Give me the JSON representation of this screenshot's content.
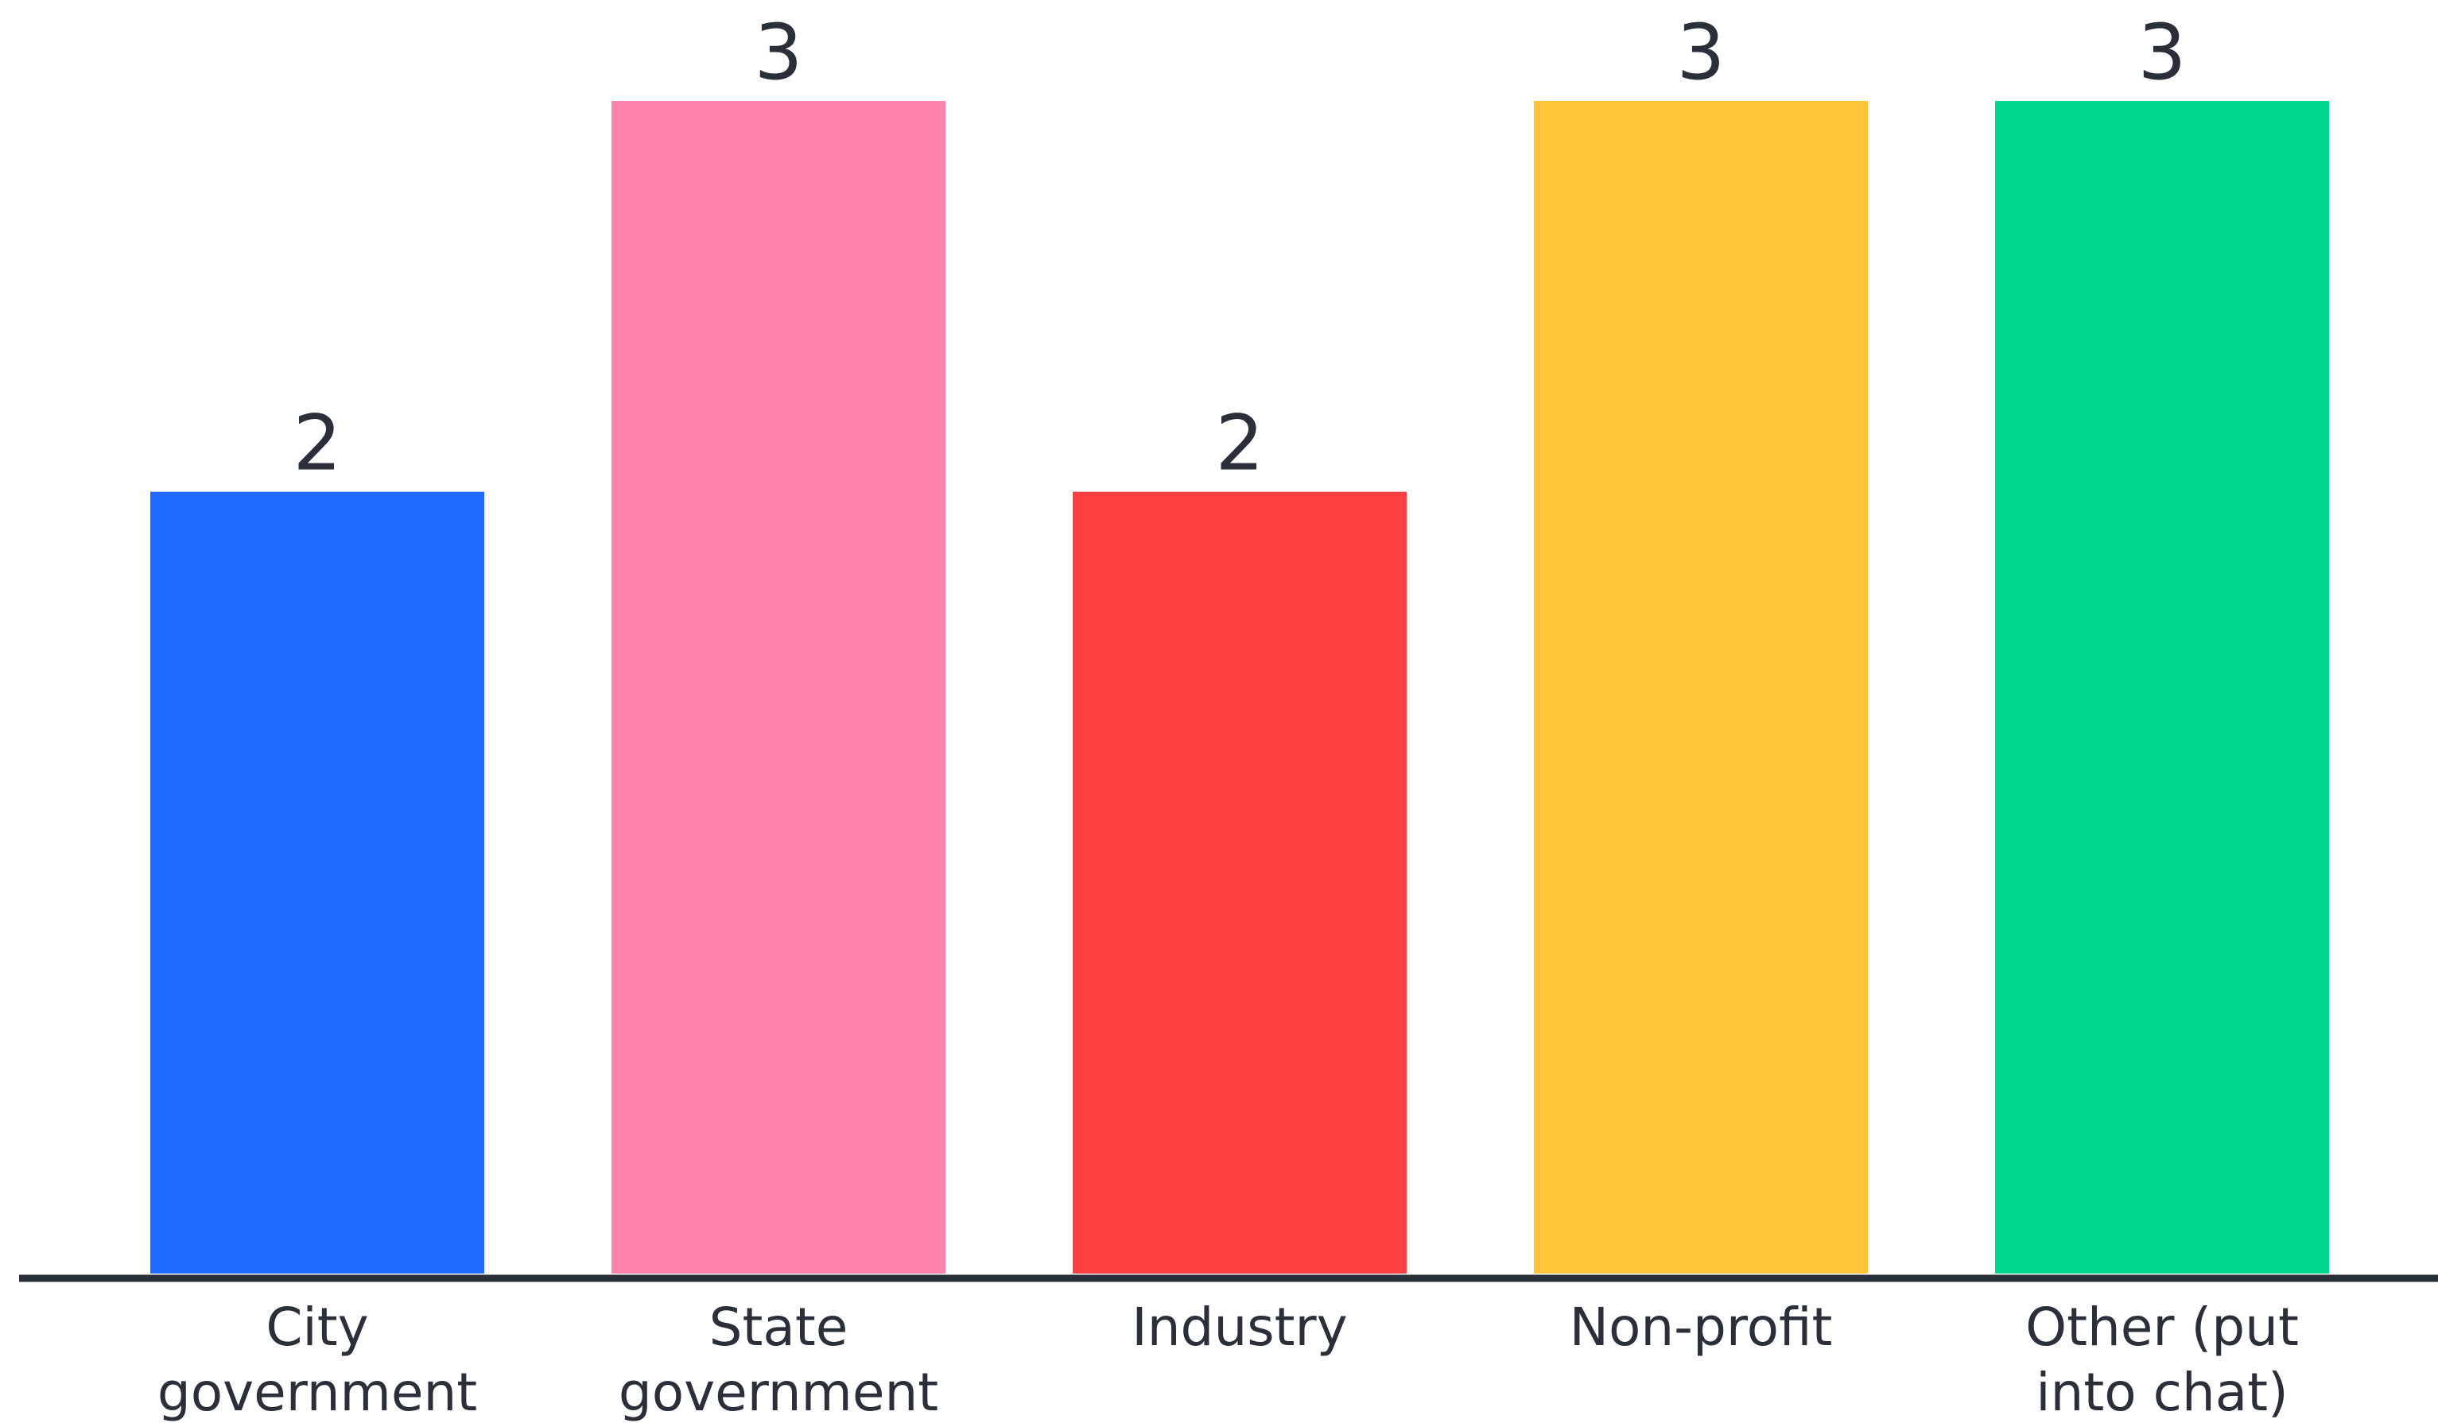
{
  "chart_data": {
    "type": "bar",
    "categories": [
      [
        "City",
        "government"
      ],
      [
        "State",
        "government"
      ],
      [
        "Industry"
      ],
      [
        "Non-profit"
      ],
      [
        "Other (put",
        "into chat)"
      ]
    ],
    "values": [
      2,
      3,
      2,
      3,
      3
    ],
    "colors": [
      "#1f6bff",
      "#ff83ab",
      "#ff3f3f",
      "#ffc43a",
      "#00d78e"
    ],
    "title": "",
    "xlabel": "",
    "ylabel": "",
    "ylim": [
      0,
      3
    ],
    "grid": false,
    "legend": "none",
    "axis_color": "#2b2f3a"
  }
}
